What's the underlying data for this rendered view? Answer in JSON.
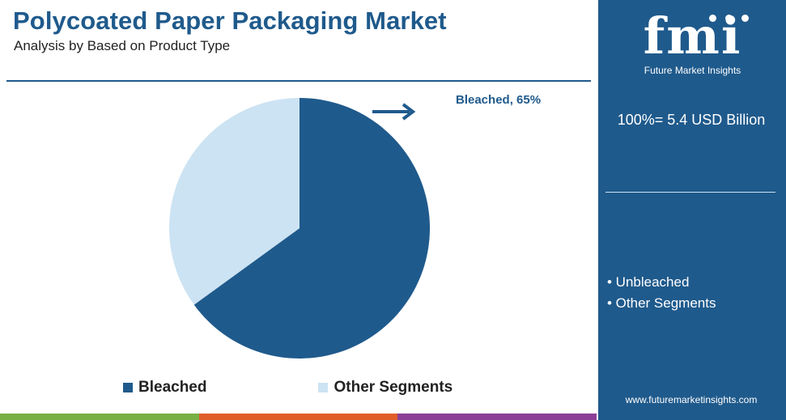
{
  "header": {
    "title": "Polycoated Paper Packaging Market",
    "subtitle": "Analysis by Based on Product Type"
  },
  "chart_data": {
    "type": "pie",
    "categories": [
      "Bleached",
      "Other Segments"
    ],
    "values": [
      65,
      35
    ],
    "colors": [
      "#1f5a8c",
      "#cce3f3"
    ],
    "callout": "Bleached, 65%",
    "legend_position": "bottom"
  },
  "sidebar": {
    "logo_text": "fmi",
    "logo_subtitle": "Future Market Insights",
    "total": "100%= 5.4 USD Billion",
    "bullets": [
      "• Unbleached",
      "• Other Segments"
    ],
    "website": "www.futuremarketinsights.com"
  },
  "footer_colors": [
    "#78b043",
    "#e05d2a",
    "#8b3f96"
  ]
}
